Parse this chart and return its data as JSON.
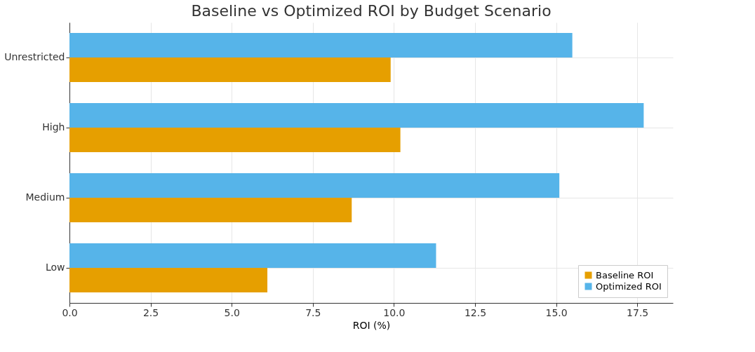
{
  "chart_data": {
    "type": "bar",
    "orientation": "horizontal",
    "title": "Baseline vs Optimized ROI by Budget Scenario",
    "xlabel": "ROI (%)",
    "categories": [
      "Unrestricted",
      "High",
      "Medium",
      "Low"
    ],
    "series": [
      {
        "name": "Baseline ROI",
        "color": "#e69f00",
        "values": [
          9.9,
          10.2,
          8.7,
          6.1
        ]
      },
      {
        "name": "Optimized ROI",
        "color": "#56b4e9",
        "values": [
          15.5,
          17.7,
          15.1,
          11.3
        ]
      }
    ],
    "xlim": [
      0,
      18.6
    ],
    "xticks": [
      {
        "value": 0,
        "label": "0.0"
      },
      2.5,
      {
        "value": 5,
        "label": "5.0"
      },
      7.5,
      {
        "value": 10,
        "label": "10.0"
      },
      12.5,
      {
        "value": 15,
        "label": "15.0"
      },
      17.5
    ],
    "grid": true,
    "legend": "bottom right"
  }
}
